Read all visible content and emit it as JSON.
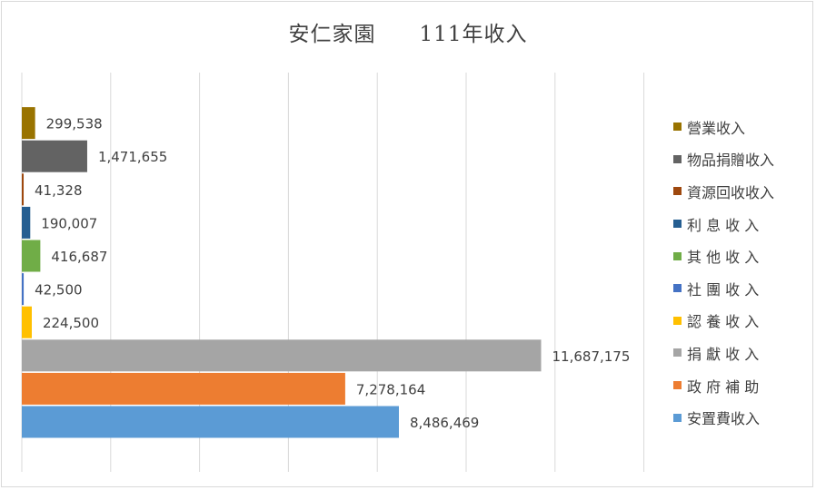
{
  "chart_data": {
    "type": "bar",
    "orientation": "horizontal",
    "title": "安仁家園　　111年收入",
    "categories": [
      "安置費收入",
      "政 府 補 助",
      "捐 獻 收 入",
      "認 養 收 入",
      "社 團 收 入",
      "其 他 收 入",
      "利 息 收 入",
      "資源回收收入",
      "物品捐贈收入",
      "營業收入"
    ],
    "values": [
      8486469,
      7278164,
      11687175,
      224500,
      42500,
      416687,
      190007,
      41328,
      1471655,
      299538
    ],
    "value_labels": [
      "8,486,469",
      "7,278,164",
      "11,687,175",
      "224,500",
      "42,500",
      "416,687",
      "190,007",
      "41,328",
      "1,471,655",
      "299,538"
    ],
    "colors": [
      "#5B9BD5",
      "#ED7D31",
      "#A5A5A5",
      "#FFC000",
      "#4472C4",
      "#70AD47",
      "#255E91",
      "#9E480E",
      "#636363",
      "#997300"
    ],
    "xlim": [
      0,
      14000000
    ],
    "grid": true,
    "legend_position": "right",
    "legend_order": [
      "營業收入",
      "物品捐贈收入",
      "資源回收收入",
      "利 息 收 入",
      "其 他 收 入",
      "社 團 收 入",
      "認 養 收 入",
      "捐 獻 收 入",
      "政 府 補 助",
      "安置費收入"
    ],
    "legend_colors": [
      "#997300",
      "#636363",
      "#9E480E",
      "#255E91",
      "#70AD47",
      "#4472C4",
      "#FFC000",
      "#A5A5A5",
      "#ED7D31",
      "#5B9BD5"
    ]
  }
}
